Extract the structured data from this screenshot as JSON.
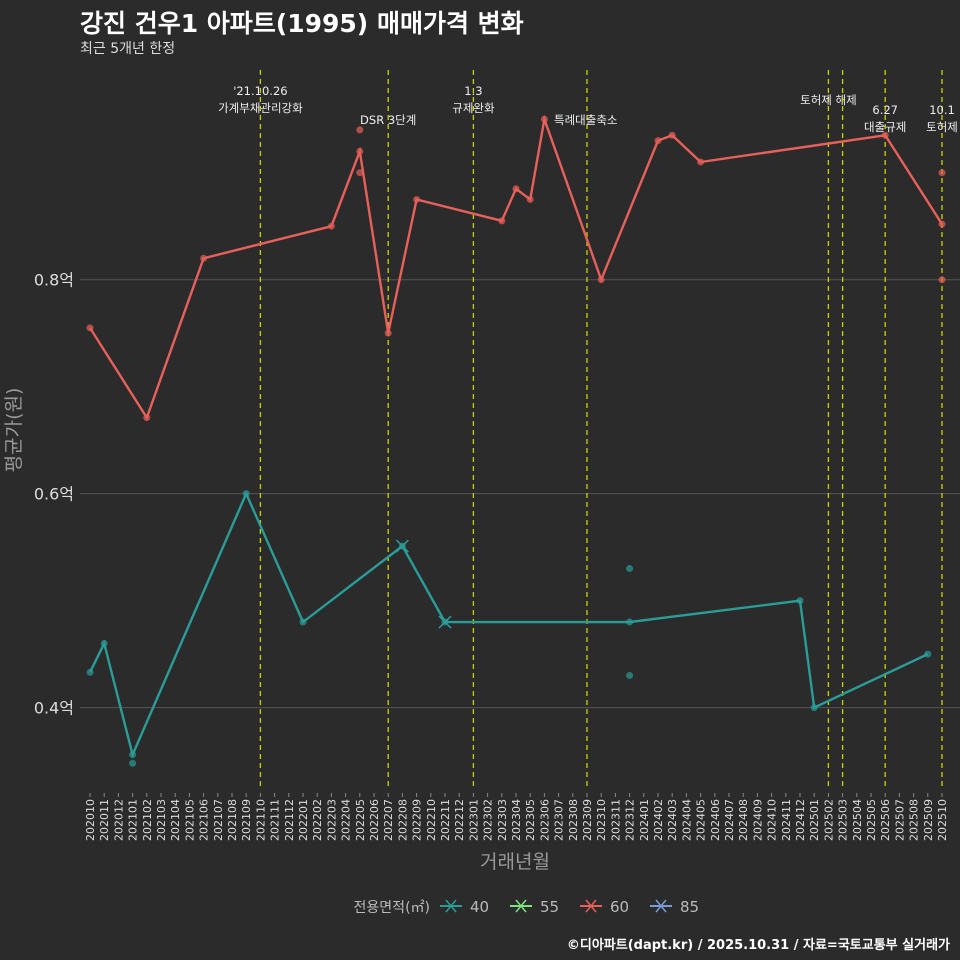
{
  "chart_data": {
    "type": "line",
    "title": "강진 건우1 아파트(1995) 매매가격 변화",
    "subtitle": "최근 5개년 한정",
    "xlabel": "거래년월",
    "ylabel": "평균가(원)",
    "caption": "©디아파트(dapt.kr) / 2025.10.31 / 자료=국토교통부 실거래가",
    "legend_title": "전용면적(㎡)",
    "legend": [
      {
        "name": "40",
        "color": "#2a9d98"
      },
      {
        "name": "55",
        "color": "#7ee07e"
      },
      {
        "name": "60",
        "color": "#e8605a"
      },
      {
        "name": "85",
        "color": "#7a9ad8"
      }
    ],
    "ylim": [
      0.323,
      0.996
    ],
    "yticks": [
      {
        "v": 0.4,
        "label": "0.4억"
      },
      {
        "v": 0.6,
        "label": "0.6억"
      },
      {
        "v": 0.8,
        "label": "0.8억"
      }
    ],
    "x_start": "202010",
    "n_months": 61,
    "series": [
      {
        "name": "60",
        "color": "#e8605a",
        "line": [
          [
            0,
            0.755
          ],
          [
            4,
            0.671
          ],
          [
            8,
            0.82
          ],
          [
            17,
            0.85
          ],
          [
            19,
            0.92
          ],
          [
            21,
            0.75
          ],
          [
            23,
            0.875
          ],
          [
            29,
            0.855
          ],
          [
            30,
            0.885
          ],
          [
            31,
            0.875
          ],
          [
            32,
            0.95
          ],
          [
            36,
            0.8
          ],
          [
            40,
            0.93
          ],
          [
            41,
            0.935
          ],
          [
            43,
            0.91
          ],
          [
            56,
            0.935
          ],
          [
            60,
            0.852
          ]
        ],
        "points": [
          [
            19,
            0.94
          ],
          [
            19,
            0.9
          ],
          [
            60,
            0.9
          ],
          [
            60,
            0.8
          ]
        ]
      },
      {
        "name": "40",
        "color": "#2a9d98",
        "line": [
          [
            0,
            0.433
          ],
          [
            1,
            0.46
          ],
          [
            3,
            0.356
          ],
          [
            11,
            0.6
          ],
          [
            15,
            0.48
          ],
          [
            22,
            0.551
          ],
          [
            25,
            0.48
          ],
          [
            38,
            0.48
          ],
          [
            50,
            0.5
          ],
          [
            51,
            0.4
          ],
          [
            59,
            0.45
          ]
        ],
        "points": [
          [
            3,
            0.348
          ],
          [
            38,
            0.53
          ],
          [
            38,
            0.43
          ]
        ],
        "x_markers": [
          [
            22,
            0.551
          ],
          [
            25,
            0.48
          ]
        ]
      }
    ],
    "events": [
      {
        "m": 12,
        "lines": [
          "'21.10.26",
          "가계부채관리강화"
        ],
        "row": 0
      },
      {
        "m": 21,
        "lines": [
          "DSR 3단계"
        ],
        "row": 2
      },
      {
        "m": 27,
        "lines": [
          "1.3",
          "규제완화"
        ],
        "row": 0
      },
      {
        "m": 35,
        "lines": [
          "특례대출축소"
        ],
        "row": 2,
        "right": true
      },
      {
        "m": 52,
        "lines": [
          "토허제 해제"
        ],
        "row": 1
      },
      {
        "m": 53,
        "lines": [],
        "row": 1
      },
      {
        "m": 56,
        "lines": [
          "6.27",
          "대출규제"
        ],
        "row": 1.5
      },
      {
        "m": 60,
        "lines": [
          "10.1",
          "토허제"
        ],
        "row": 1.5
      }
    ]
  }
}
